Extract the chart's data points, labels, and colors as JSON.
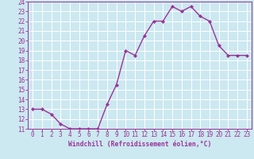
{
  "x": [
    0,
    1,
    2,
    3,
    4,
    5,
    6,
    7,
    8,
    9,
    10,
    11,
    12,
    13,
    14,
    15,
    16,
    17,
    18,
    19,
    20,
    21,
    22,
    23
  ],
  "y": [
    13.0,
    13.0,
    12.5,
    11.5,
    11.0,
    11.0,
    11.0,
    11.0,
    13.5,
    15.5,
    19.0,
    18.5,
    20.5,
    22.0,
    22.0,
    23.5,
    23.0,
    23.5,
    22.5,
    22.0,
    19.5,
    18.5,
    18.5,
    18.5
  ],
  "line_color": "#993399",
  "marker": "D",
  "marker_size": 2.2,
  "bg_color": "#cce8f0",
  "grid_color": "#ffffff",
  "xlabel": "Windchill (Refroidissement éolien,°C)",
  "xlabel_color": "#993399",
  "tick_color": "#993399",
  "spine_color": "#993399",
  "ylim": [
    11,
    24
  ],
  "xlim": [
    -0.5,
    23.5
  ],
  "yticks": [
    11,
    12,
    13,
    14,
    15,
    16,
    17,
    18,
    19,
    20,
    21,
    22,
    23,
    24
  ],
  "xticks": [
    0,
    1,
    2,
    3,
    4,
    5,
    6,
    7,
    8,
    9,
    10,
    11,
    12,
    13,
    14,
    15,
    16,
    17,
    18,
    19,
    20,
    21,
    22,
    23
  ],
  "line_width": 1.0,
  "xlabel_fontsize": 5.8,
  "tick_fontsize": 5.5
}
